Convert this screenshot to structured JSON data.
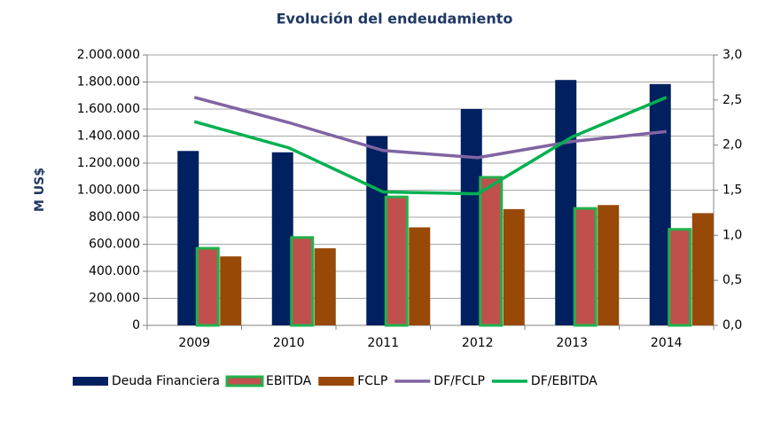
{
  "chart_data": {
    "type": "combo",
    "title": "Evolución del endeudamiento",
    "y_label": "M US$",
    "categories": [
      "2009",
      "2010",
      "2011",
      "2012",
      "2013",
      "2014"
    ],
    "series": [
      {
        "name": "Deuda Financiera",
        "type": "bar",
        "color": "#002060",
        "values": [
          1290000,
          1280000,
          1400000,
          1600000,
          1815000,
          1785000
        ]
      },
      {
        "name": "EBITDA",
        "type": "bar",
        "color": "#c0504d",
        "stroke": "#22b14c",
        "values": [
          570000,
          650000,
          950000,
          1095000,
          865000,
          710000
        ]
      },
      {
        "name": "FCLP",
        "type": "bar",
        "color": "#984807",
        "values": [
          510000,
          570000,
          725000,
          860000,
          890000,
          830000
        ]
      },
      {
        "name": "DF/FCLP",
        "type": "line",
        "axis": "y2",
        "color": "#8064a2",
        "values": [
          2.53,
          2.25,
          1.94,
          1.86,
          2.04,
          2.15
        ]
      },
      {
        "name": "DF/EBITDA",
        "type": "line",
        "axis": "y2",
        "color": "#00b050",
        "values": [
          2.26,
          1.97,
          1.48,
          1.46,
          2.09,
          2.53
        ]
      }
    ],
    "ylim": [
      0,
      2000000
    ],
    "yticks": [
      0,
      {
        "value": 200000,
        "label": "200.000"
      },
      {
        "value": 400000,
        "label": "400.000"
      },
      {
        "value": 600000,
        "label": "600.000"
      },
      {
        "value": 800000,
        "label": "800.000"
      },
      {
        "value": 1000000,
        "label": "1.000.000"
      },
      {
        "value": 1200000,
        "label": "1.200.000"
      },
      {
        "value": 1400000,
        "label": "1.400.000"
      },
      {
        "value": 1600000,
        "label": "1.600.000"
      },
      {
        "value": 1800000,
        "label": "1.800.000"
      },
      {
        "value": 2000000,
        "label": "2.000.000"
      }
    ],
    "y2lim": [
      0,
      3
    ],
    "y2ticks": [
      {
        "value": 0,
        "label": "0,0"
      },
      {
        "value": 0.5,
        "label": "0,5"
      },
      {
        "value": 1,
        "label": "1,0"
      },
      {
        "value": 1.5,
        "label": "1,5"
      },
      {
        "value": 2,
        "label": "2,0"
      },
      {
        "value": 2.5,
        "label": "2,5"
      },
      {
        "value": 3,
        "label": "3,0"
      }
    ],
    "grid": true,
    "legend": "bottom"
  }
}
